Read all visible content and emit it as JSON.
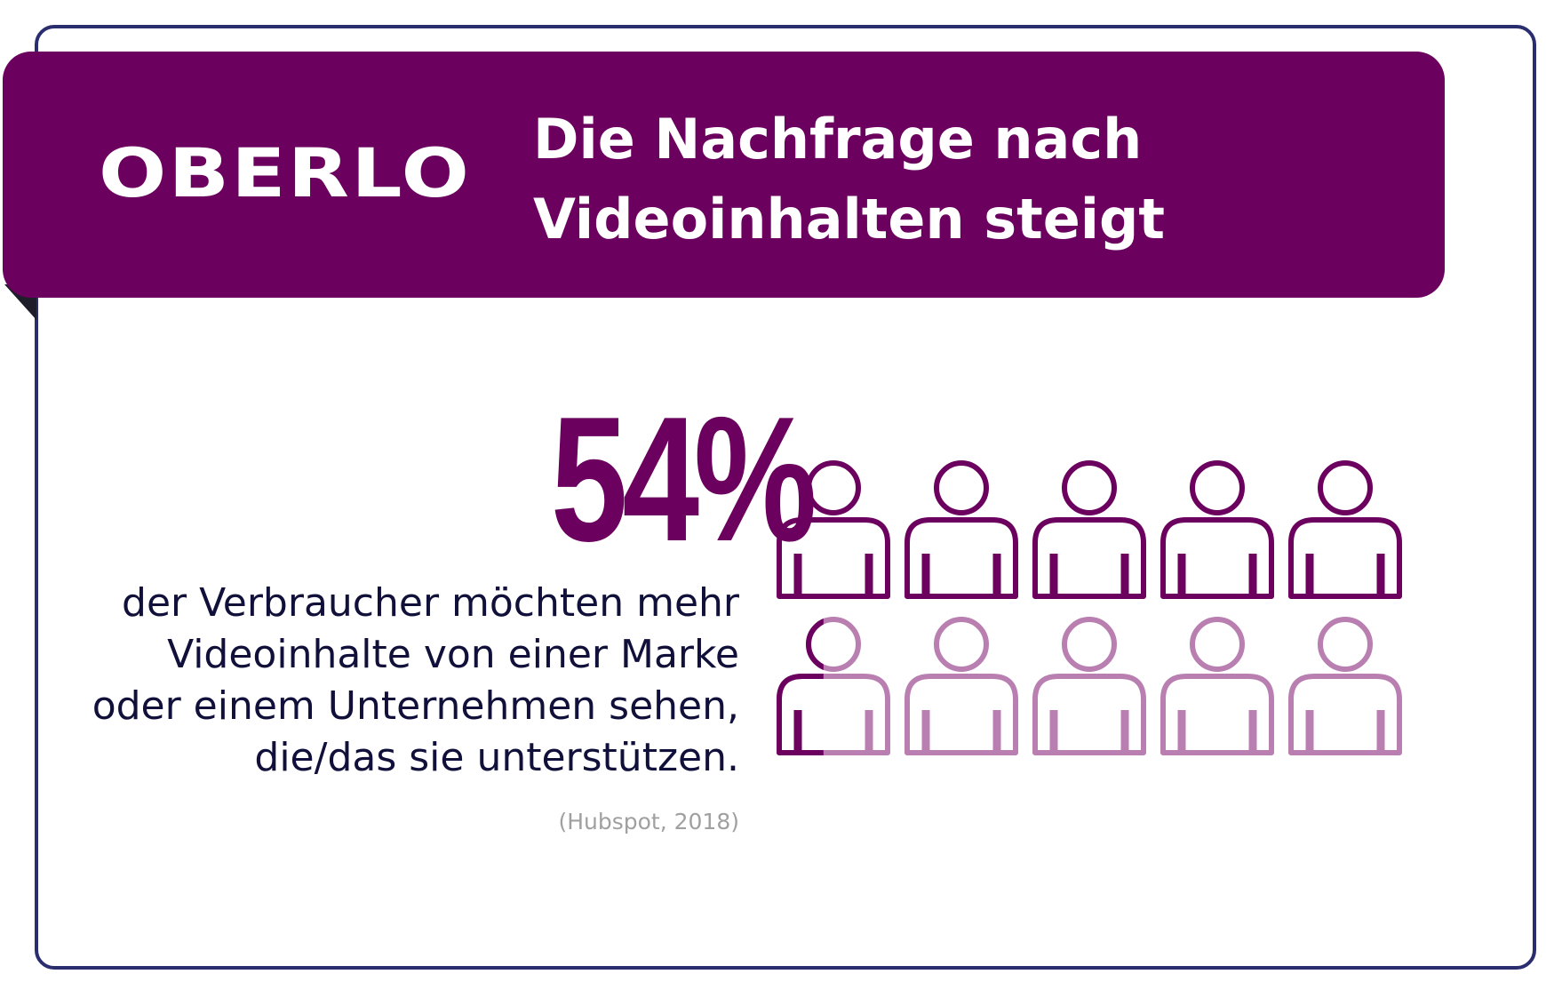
{
  "brand": {
    "logo": "OBERLO"
  },
  "header": {
    "title_line1": "Die Nachfrage nach",
    "title_line2": "Videoinhalten steigt"
  },
  "stat": {
    "value": "54%",
    "fraction": 0.54
  },
  "description": [
    "der Verbraucher möchten mehr",
    "Videoinhalte von einer Marke",
    "oder einem Unternehmen sehen,",
    "die/das sie unterstützen."
  ],
  "source": "(Hubspot, 2018)",
  "pictogram": {
    "total": 10,
    "filled": 5.4,
    "icon": "person-icon"
  },
  "colors": {
    "primary": "#6b005e",
    "light": "#b87fb0",
    "border": "#2a2d6e",
    "text": "#10103a"
  }
}
